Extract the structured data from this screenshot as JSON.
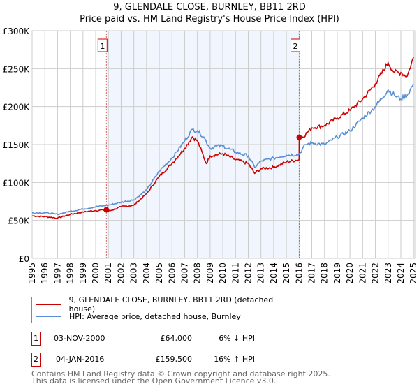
{
  "title": "9, GLENDALE CLOSE, BURNLEY, BB11 2RD",
  "subtitle": "Price paid vs. HM Land Registry's House Price Index (HPI)",
  "chart_data": {
    "type": "line",
    "title": "9, GLENDALE CLOSE, BURNLEY, BB11 2RD",
    "subtitle": "Price paid vs. HM Land Registry's House Price Index (HPI)",
    "xlim": [
      1995,
      2025.1
    ],
    "ylim": [
      0,
      300000
    ],
    "grid": true,
    "yticks": [
      {
        "v": 0,
        "label": "£0"
      },
      {
        "v": 50000,
        "label": "£50K"
      },
      {
        "v": 100000,
        "label": "£100K"
      },
      {
        "v": 150000,
        "label": "£150K"
      },
      {
        "v": 200000,
        "label": "£200K"
      },
      {
        "v": 250000,
        "label": "£250K"
      },
      {
        "v": 300000,
        "label": "£300K"
      }
    ],
    "xticks": [
      "1995",
      "1996",
      "1997",
      "1998",
      "1999",
      "2000",
      "2001",
      "2002",
      "2003",
      "2004",
      "2005",
      "2006",
      "2007",
      "2008",
      "2009",
      "2010",
      "2011",
      "2012",
      "2013",
      "2014",
      "2015",
      "2016",
      "2017",
      "2018",
      "2019",
      "2020",
      "2021",
      "2022",
      "2023",
      "2024",
      "2025"
    ],
    "shaded_region": [
      2000.84,
      2016.01
    ],
    "series": [
      {
        "name": "9, GLENDALE CLOSE, BURNLEY, BB11 2RD (detached house)",
        "color": "#cc0000",
        "x": [
          1995,
          1996,
          1997,
          1998,
          1999,
          2000,
          2000.84,
          2001,
          2002,
          2003,
          2004,
          2005,
          2006,
          2007,
          2007.6,
          2008,
          2008.7,
          2009,
          2010,
          2011,
          2012,
          2012.5,
          2013,
          2014,
          2015,
          2016.0,
          2016.01,
          2016.3,
          2017,
          2018,
          2019,
          2020,
          2021,
          2022,
          2023,
          2023.5,
          2024,
          2024.5,
          2025
        ],
        "y": [
          56000,
          55000,
          53000,
          58000,
          61000,
          63000,
          64000,
          62000,
          68000,
          70000,
          85000,
          108000,
          125000,
          145000,
          160000,
          155000,
          125000,
          135000,
          138000,
          130000,
          125000,
          112000,
          118000,
          120000,
          127000,
          130000,
          159500,
          160000,
          172000,
          175000,
          185000,
          195000,
          210000,
          230000,
          258000,
          245000,
          245000,
          240000,
          265000
        ]
      },
      {
        "name": "HPI: Average price, detached house, Burnley",
        "color": "#5b8fd4",
        "x": [
          1995,
          1996,
          1997,
          1998,
          1999,
          2000,
          2001,
          2002,
          2003,
          2004,
          2005,
          2006,
          2007,
          2007.6,
          2008,
          2008.5,
          2009,
          2009.5,
          2010,
          2011,
          2012,
          2012.5,
          2013,
          2014,
          2015,
          2016,
          2016.5,
          2017,
          2018,
          2019,
          2020,
          2021,
          2022,
          2023,
          2023.5,
          2024,
          2024.5,
          2025
        ],
        "y": [
          60000,
          60000,
          58000,
          62000,
          65000,
          68000,
          70000,
          74000,
          77000,
          90000,
          115000,
          132000,
          155000,
          170000,
          168000,
          160000,
          145000,
          148000,
          148000,
          140000,
          135000,
          120000,
          128000,
          132000,
          136000,
          137000,
          150000,
          152000,
          150000,
          160000,
          168000,
          185000,
          200000,
          222000,
          215000,
          210000,
          215000,
          230000
        ]
      }
    ],
    "annotations": [
      {
        "label": "1",
        "x": 2000.84,
        "y": 64000
      },
      {
        "label": "2",
        "x": 2016.01,
        "y": 159500
      }
    ]
  },
  "legend": {
    "items": [
      "9, GLENDALE CLOSE, BURNLEY, BB11 2RD (detached house)",
      "HPI: Average price, detached house, Burnley"
    ]
  },
  "transactions": [
    {
      "num": "1",
      "date": "03-NOV-2000",
      "price": "£64,000",
      "hpi": "6% ↓ HPI"
    },
    {
      "num": "2",
      "date": "04-JAN-2016",
      "price": "£159,500",
      "hpi": "16% ↑ HPI"
    }
  ],
  "footer": [
    "Contains HM Land Registry data © Crown copyright and database right 2025.",
    "This data is licensed under the Open Government Licence v3.0."
  ]
}
